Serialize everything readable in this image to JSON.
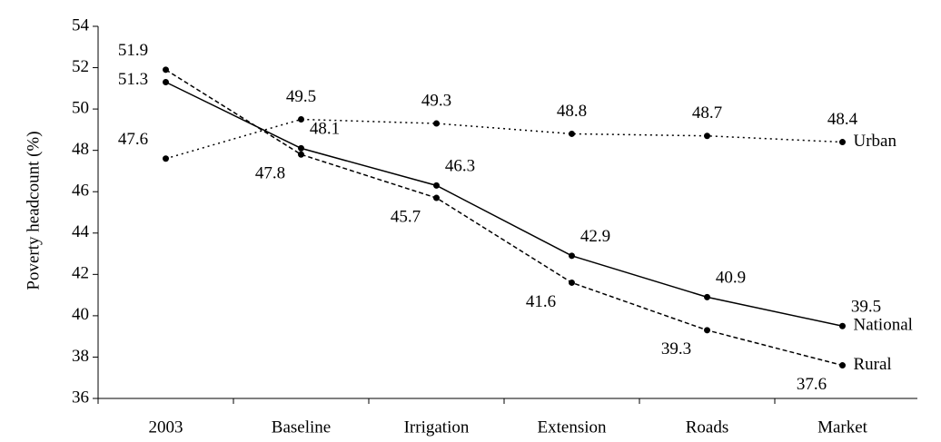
{
  "chart_data": {
    "type": "line",
    "y_label": "Poverty headcount (%)",
    "categories": [
      "2003",
      "Baseline",
      "Irrigation",
      "Extension",
      "Roads",
      "Market"
    ],
    "series": [
      {
        "name": "National",
        "color": "#000000",
        "dash": "solid",
        "values": [
          51.3,
          48.1,
          46.3,
          42.9,
          40.9,
          39.5
        ]
      },
      {
        "name": "Urban",
        "color": "#000000",
        "dash": "dotted",
        "values": [
          47.6,
          49.5,
          49.3,
          48.8,
          48.7,
          48.4
        ]
      },
      {
        "name": "Rural",
        "color": "#000000",
        "dash": "dashed",
        "values": [
          51.9,
          47.8,
          45.7,
          41.6,
          39.3,
          37.6
        ]
      }
    ],
    "ylim": [
      36,
      54
    ],
    "yticks": [
      36,
      38,
      40,
      42,
      44,
      46,
      48,
      50,
      52,
      54
    ]
  }
}
